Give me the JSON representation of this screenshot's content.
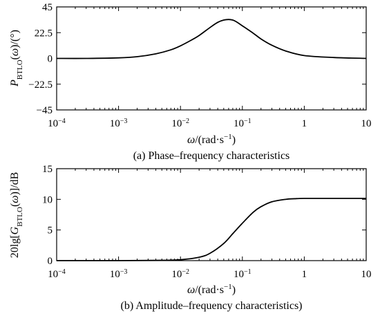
{
  "chart_data": [
    {
      "type": "line",
      "x_scale": "log",
      "xlim": [
        0.0001,
        10
      ],
      "ylim": [
        -45,
        45
      ],
      "grid": false,
      "xlabel": "ω/(rad·s−1)",
      "ylabel": "PBTLO(ω)/(°)",
      "caption": "(a) Phase–frequency characteristics",
      "x_ticks": [
        0.0001,
        0.001,
        0.01,
        0.1,
        1,
        10
      ],
      "y_ticks": [
        45,
        22.5,
        0,
        -22.5,
        -45
      ],
      "y_tick_labels": [
        "45",
        "22.5",
        "0",
        "−22.5",
        "−45"
      ],
      "series": [
        {
          "x": [
            0.0001,
            0.0003,
            0.001,
            0.002,
            0.004,
            0.007,
            0.01,
            0.015,
            0.02,
            0.03,
            0.04,
            0.05,
            0.06,
            0.07,
            0.08,
            0.1,
            0.15,
            0.2,
            0.3,
            0.5,
            1,
            3,
            10
          ],
          "y": [
            0,
            0,
            0.5,
            1.5,
            4,
            7.5,
            11,
            16,
            20,
            27,
            31.5,
            33.5,
            34,
            33.5,
            32,
            28.5,
            22,
            17,
            11.5,
            6.5,
            2.5,
            0.8,
            0
          ]
        }
      ]
    },
    {
      "type": "line",
      "x_scale": "log",
      "xlim": [
        0.0001,
        10
      ],
      "ylim": [
        0,
        15
      ],
      "grid": false,
      "xlabel": "ω/(rad·s−1)",
      "ylabel": "20lg[GBTLO(ω)]/dB",
      "caption": "(b) Amplitude–frequency characteristics)",
      "x_ticks": [
        0.0001,
        0.001,
        0.01,
        0.1,
        1,
        10
      ],
      "y_ticks": [
        15,
        10,
        5,
        0
      ],
      "y_tick_labels": [
        "15",
        "10",
        "5",
        "0"
      ],
      "series": [
        {
          "x": [
            0.0001,
            0.001,
            0.005,
            0.01,
            0.02,
            0.03,
            0.05,
            0.07,
            0.1,
            0.15,
            0.2,
            0.3,
            0.5,
            0.7,
            1,
            3,
            10
          ],
          "y": [
            0,
            0,
            0.05,
            0.15,
            0.55,
            1.2,
            2.8,
            4.4,
            6.1,
            7.9,
            8.8,
            9.6,
            10.0,
            10.1,
            10.15,
            10.15,
            10.15
          ]
        }
      ]
    }
  ]
}
